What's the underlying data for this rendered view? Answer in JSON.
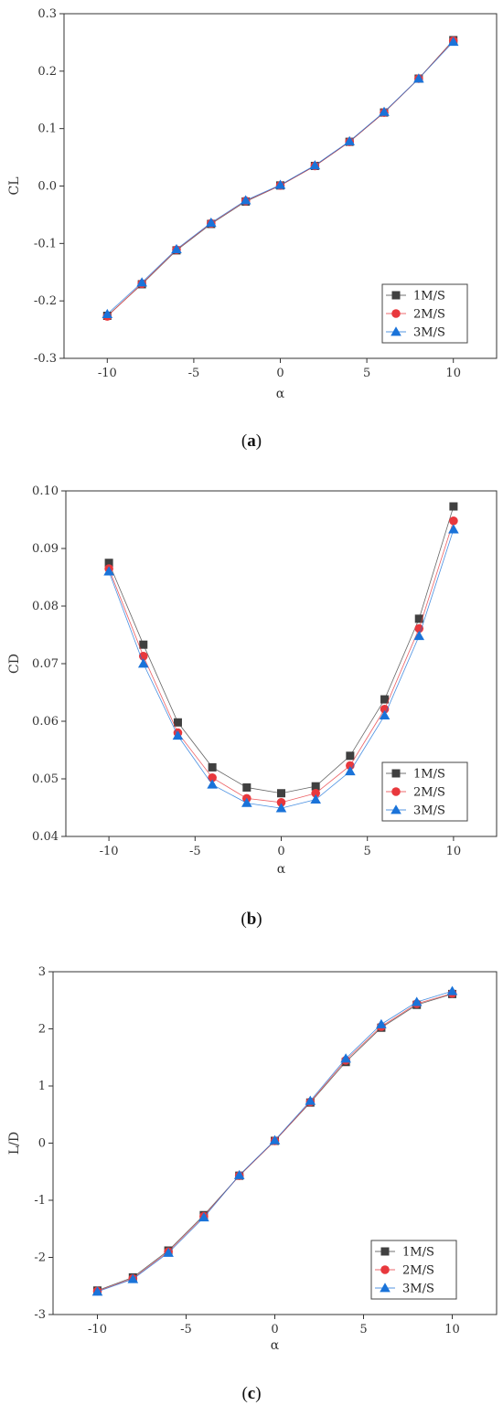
{
  "chart_data": [
    {
      "id": "a",
      "type": "line",
      "caption": "(a)",
      "caption_letter": "a",
      "xlabel": "α",
      "ylabel": "CL",
      "xlim": [
        -12.5,
        12.5
      ],
      "ylim": [
        -0.3,
        0.3
      ],
      "xticks": [
        -10,
        -5,
        0,
        5,
        10
      ],
      "yticks": [
        -0.3,
        -0.2,
        -0.1,
        0.0,
        0.1,
        0.2,
        0.3
      ],
      "ytick_labels": [
        "-0.3",
        "-0.2",
        "-0.1",
        "0.0",
        "0.1",
        "0.2",
        "0.3"
      ],
      "legend_position": "bottom-right",
      "x": [
        -10,
        -8,
        -6,
        -4,
        -2,
        0,
        2,
        4,
        6,
        8,
        10
      ],
      "series": [
        {
          "name": "1M/S",
          "color": "#404040",
          "marker": "square",
          "values": [
            -0.226,
            -0.171,
            -0.112,
            -0.066,
            -0.027,
            0.001,
            0.035,
            0.077,
            0.128,
            0.187,
            0.254
          ]
        },
        {
          "name": "2M/S",
          "color": "#e8383d",
          "marker": "circle",
          "values": [
            -0.227,
            -0.17,
            -0.111,
            -0.065,
            -0.026,
            0.001,
            0.035,
            0.077,
            0.128,
            0.187,
            0.253
          ]
        },
        {
          "name": "3M/S",
          "color": "#1a73d9",
          "marker": "triangle",
          "values": [
            -0.223,
            -0.168,
            -0.11,
            -0.064,
            -0.025,
            0.002,
            0.036,
            0.078,
            0.129,
            0.187,
            0.251
          ]
        }
      ]
    },
    {
      "id": "b",
      "type": "line",
      "caption": "(b)",
      "caption_letter": "b",
      "xlabel": "α",
      "ylabel": "CD",
      "xlim": [
        -12.5,
        12.5
      ],
      "ylim": [
        0.04,
        0.1
      ],
      "xticks": [
        -10,
        -5,
        0,
        5,
        10
      ],
      "yticks": [
        0.04,
        0.05,
        0.06,
        0.07,
        0.08,
        0.09,
        0.1
      ],
      "ytick_labels": [
        "0.04",
        "0.05",
        "0.06",
        "0.07",
        "0.08",
        "0.09",
        "0.10"
      ],
      "legend_position": "bottom-right",
      "x": [
        -10,
        -8,
        -6,
        -4,
        -2,
        0,
        2,
        4,
        6,
        8,
        10
      ],
      "series": [
        {
          "name": "1M/S",
          "color": "#404040",
          "marker": "square",
          "values": [
            0.0875,
            0.0733,
            0.0598,
            0.052,
            0.0485,
            0.0475,
            0.0487,
            0.054,
            0.0638,
            0.0778,
            0.0973
          ]
        },
        {
          "name": "2M/S",
          "color": "#e8383d",
          "marker": "circle",
          "values": [
            0.0865,
            0.0713,
            0.058,
            0.0502,
            0.0466,
            0.0459,
            0.0475,
            0.0523,
            0.0621,
            0.0761,
            0.0948
          ]
        },
        {
          "name": "3M/S",
          "color": "#1a73d9",
          "marker": "triangle",
          "values": [
            0.086,
            0.07,
            0.0575,
            0.049,
            0.0458,
            0.0449,
            0.0464,
            0.0513,
            0.061,
            0.0748,
            0.0933
          ]
        }
      ]
    },
    {
      "id": "c",
      "type": "line",
      "caption": "(c)",
      "caption_letter": "c",
      "xlabel": "α",
      "ylabel": "L/D",
      "xlim": [
        -12.5,
        12.5
      ],
      "ylim": [
        -3,
        3
      ],
      "xticks": [
        -10,
        -5,
        0,
        5,
        10
      ],
      "yticks": [
        -3,
        -2,
        -1,
        0,
        1,
        2,
        3
      ],
      "ytick_labels": [
        "-3",
        "-2",
        "-1",
        "0",
        "1",
        "2",
        "3"
      ],
      "legend_position": "bottom-right",
      "x": [
        -10,
        -8,
        -6,
        -4,
        -2,
        0,
        2,
        4,
        6,
        8,
        10
      ],
      "series": [
        {
          "name": "1M/S",
          "color": "#404040",
          "marker": "square",
          "values": [
            -2.58,
            -2.35,
            -1.88,
            -1.26,
            -0.57,
            0.04,
            0.71,
            1.42,
            2.02,
            2.42,
            2.61
          ]
        },
        {
          "name": "2M/S",
          "color": "#e8383d",
          "marker": "circle",
          "values": [
            -2.59,
            -2.37,
            -1.9,
            -1.28,
            -0.57,
            0.04,
            0.72,
            1.45,
            2.04,
            2.44,
            2.62
          ]
        },
        {
          "name": "3M/S",
          "color": "#1a73d9",
          "marker": "triangle",
          "values": [
            -2.6,
            -2.38,
            -1.92,
            -1.3,
            -0.56,
            0.05,
            0.74,
            1.48,
            2.08,
            2.47,
            2.66
          ]
        }
      ]
    }
  ]
}
